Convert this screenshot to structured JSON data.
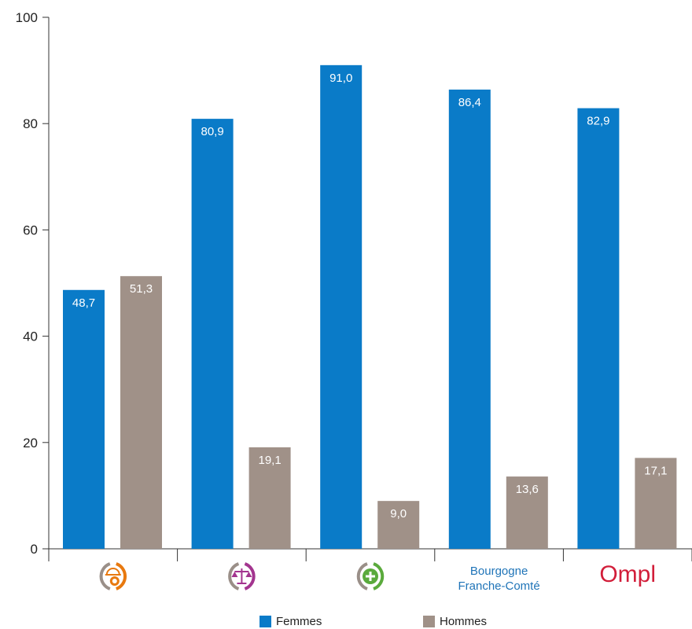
{
  "chart_data": {
    "type": "bar",
    "categories": [
      {
        "kind": "icon",
        "icon": "construction-worker-icon",
        "color": "#e8790f"
      },
      {
        "kind": "icon",
        "icon": "scales-of-justice-icon",
        "color": "#a3358f"
      },
      {
        "kind": "icon",
        "icon": "health-cross-icon",
        "color": "#5aaa3c"
      },
      {
        "kind": "text",
        "lines": [
          "Bourgogne",
          "Franche-Comté"
        ],
        "color": "#1f74b8"
      },
      {
        "kind": "logo",
        "text": "Ompl",
        "color": "#d21e3a"
      }
    ],
    "series": [
      {
        "name": "Femmes",
        "color": "#0a7bc8",
        "values": [
          48.7,
          80.9,
          91.0,
          86.4,
          82.9
        ],
        "labels": [
          "48,7",
          "80,9",
          "91,0",
          "86,4",
          "82,9"
        ]
      },
      {
        "name": "Hommes",
        "color": "#a09188",
        "values": [
          51.3,
          19.1,
          9.0,
          13.6,
          17.1
        ],
        "labels": [
          "51,3",
          "19,1",
          "9,0",
          "13,6",
          "17,1"
        ]
      }
    ],
    "ylim": [
      0,
      100
    ],
    "yticks": [
      0,
      20,
      40,
      60,
      80,
      100
    ],
    "grid": false,
    "legend": "bottom"
  }
}
